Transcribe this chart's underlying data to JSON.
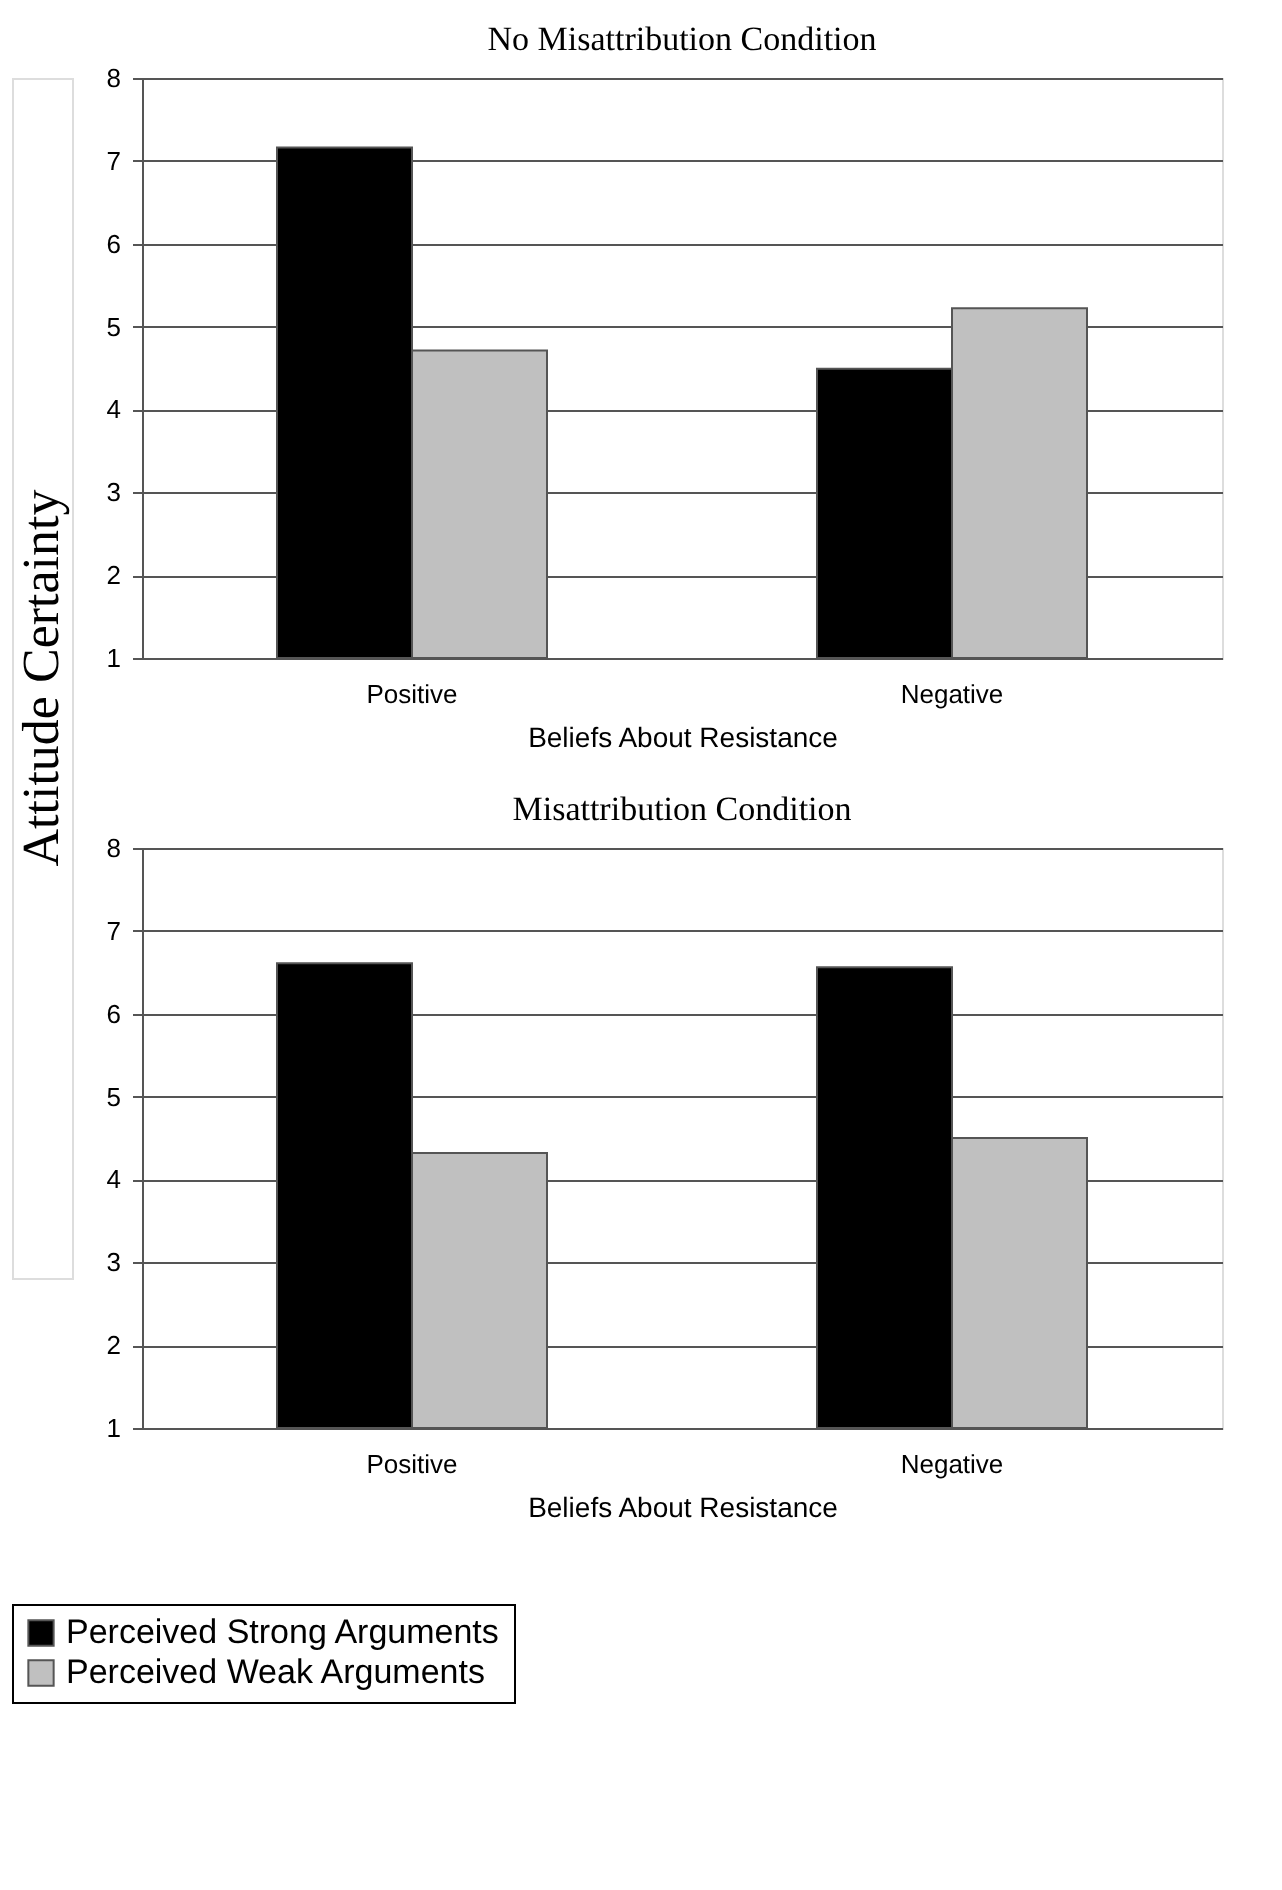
{
  "chart_data": [
    {
      "type": "bar",
      "title": "No Misattribution Condition",
      "xlabel": "Beliefs About Resistance",
      "ylabel": "Attitude Certainty",
      "categories": [
        "Positive",
        "Negative"
      ],
      "series": [
        {
          "name": "Perceived Strong Arguments",
          "color": "#000000",
          "values": [
            7.16,
            4.49
          ]
        },
        {
          "name": "Perceived Weak Arguments",
          "color": "#c0c0c0",
          "values": [
            4.71,
            5.22
          ]
        }
      ],
      "ylim": [
        1,
        8
      ],
      "yticks": [
        1,
        2,
        3,
        4,
        5,
        6,
        7,
        8
      ],
      "grid": "y",
      "legend": "bottom"
    },
    {
      "type": "bar",
      "title": "Misattribution Condition",
      "xlabel": "Beliefs About Resistance",
      "categories": [
        "Positive",
        "Negative"
      ],
      "series": [
        {
          "name": "Perceived Strong Arguments",
          "color": "#000000",
          "values": [
            6.61,
            6.56
          ]
        },
        {
          "name": "Perceived Weak Arguments",
          "color": "#c0c0c0",
          "values": [
            4.32,
            4.5
          ]
        }
      ],
      "ylim": [
        1,
        8
      ],
      "yticks": [
        1,
        2,
        3,
        4,
        5,
        6,
        7,
        8
      ],
      "grid": "y",
      "legend": "bottom"
    }
  ]
}
